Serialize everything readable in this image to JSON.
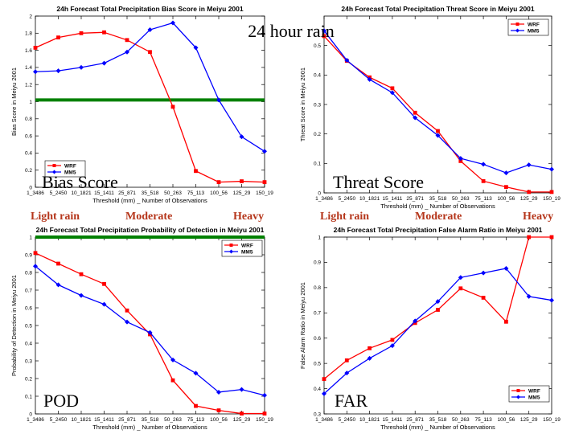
{
  "heading": "24 hour rain",
  "category_labels": {
    "left": [
      "Light rain",
      "Moderate",
      "Heavy"
    ],
    "right": [
      "Light rain",
      "Moderate",
      "Heavy"
    ]
  },
  "colors": {
    "wrf": "#ff0000",
    "mm5": "#0000ff",
    "reference": "#008000",
    "category": "#b5361b"
  },
  "chart_data": [
    {
      "id": "bias",
      "type": "line",
      "title": "24h Forecast Total Precipitation Bias Score in Meiyu 2001",
      "big_label": "Bias Score",
      "xlabel": "Threshold (mm) _ Number of Observations",
      "ylabel": "Bias Score in Meiyu 2001",
      "categories": [
        "1_3486",
        "5_2450",
        "10_1821",
        "15_1411",
        "25_871",
        "35_518",
        "50_263",
        "75_113",
        "100_56",
        "125_29",
        "150_19"
      ],
      "ylim": [
        0,
        2
      ],
      "yticks": [
        "0",
        "0.2",
        "0.4",
        "0.6",
        "0.8",
        "1",
        "1.2",
        "1.4",
        "1.6",
        "1.8",
        "2"
      ],
      "reference_line": 1.02,
      "legend_position": "bottom-left",
      "series": [
        {
          "name": "WRF",
          "values": [
            1.63,
            1.75,
            1.8,
            1.81,
            1.72,
            1.58,
            0.94,
            0.19,
            0.06,
            0.07,
            0.06
          ]
        },
        {
          "name": "MM5",
          "values": [
            1.35,
            1.36,
            1.4,
            1.45,
            1.58,
            1.84,
            1.92,
            1.63,
            1.02,
            0.59,
            0.42
          ]
        }
      ]
    },
    {
      "id": "threat",
      "type": "line",
      "title": "24h Forecast Total Precipitation Threat Score in Meiyu 2001",
      "big_label": "Threat Score",
      "xlabel": "Threshold (mm) _ Number of Observations",
      "ylabel": "Threat Score in Meiyu 2001",
      "categories": [
        "1_3486",
        "5_2450",
        "10_1821",
        "15_1411",
        "25_871",
        "35_518",
        "50_263",
        "75_113",
        "100_56",
        "125_29",
        "150_19"
      ],
      "ylim": [
        0,
        0.6
      ],
      "yticks": [
        "0",
        "0.1",
        "0.2",
        "0.3",
        "0.4",
        "0.5"
      ],
      "reference_line": null,
      "legend_position": "top-right",
      "series": [
        {
          "name": "WRF",
          "values": [
            0.532,
            0.448,
            0.392,
            0.355,
            0.272,
            0.21,
            0.108,
            0.04,
            0.02,
            0.003,
            0.003
          ]
        },
        {
          "name": "MM5",
          "values": [
            0.55,
            0.45,
            0.385,
            0.34,
            0.255,
            0.195,
            0.117,
            0.097,
            0.068,
            0.095,
            0.08
          ]
        }
      ]
    },
    {
      "id": "pod",
      "type": "line",
      "title": "24h Forecast Total Precipitation Probability of Detection in Meiyu 2001",
      "big_label": "POD",
      "xlabel": "Threshold (mm) _ Number of Observations",
      "ylabel": "Probability of Detection in Meiyu 2001",
      "categories": [
        "1_3486",
        "5_2450",
        "10_1821",
        "15_1411",
        "25_871",
        "35_518",
        "50_263",
        "75_113",
        "100_56",
        "125_29",
        "150_19"
      ],
      "ylim": [
        0,
        1
      ],
      "yticks": [
        "0",
        "0.1",
        "0.2",
        "0.3",
        "0.4",
        "0.5",
        "0.6",
        "0.7",
        "0.8",
        "0.9",
        "1"
      ],
      "reference_line": 1.0,
      "legend_position": "top-right",
      "series": [
        {
          "name": "WRF",
          "values": [
            0.91,
            0.85,
            0.79,
            0.735,
            0.585,
            0.45,
            0.19,
            0.045,
            0.02,
            0.002,
            0.002
          ]
        },
        {
          "name": "MM5",
          "values": [
            0.835,
            0.73,
            0.67,
            0.62,
            0.52,
            0.46,
            0.305,
            0.23,
            0.123,
            0.138,
            0.105
          ]
        }
      ]
    },
    {
      "id": "far",
      "type": "line",
      "title": "24h Forecast Total Precipitation False Alarm Ratio in Meiyu 2001",
      "big_label": "FAR",
      "xlabel": "Threshold (mm) _ Number of Observations",
      "ylabel": "False Alarm Ratio in Meiyu 2001",
      "categories": [
        "1_3486",
        "5_2450",
        "10_1821",
        "15_1411",
        "25_871",
        "35_518",
        "50_263",
        "75_113",
        "100_56",
        "125_29",
        "150_19"
      ],
      "ylim": [
        0.3,
        1
      ],
      "yticks": [
        "0.3",
        "0.4",
        "0.5",
        "0.6",
        "0.7",
        "0.8",
        "0.9",
        "1"
      ],
      "reference_line": null,
      "legend_position": "bottom-right",
      "series": [
        {
          "name": "WRF",
          "values": [
            0.438,
            0.512,
            0.56,
            0.593,
            0.66,
            0.712,
            0.797,
            0.76,
            0.665,
            1.0,
            1.0
          ]
        },
        {
          "name": "MM5",
          "values": [
            0.38,
            0.462,
            0.52,
            0.57,
            0.668,
            0.745,
            0.84,
            0.858,
            0.876,
            0.765,
            0.75
          ]
        }
      ]
    }
  ]
}
